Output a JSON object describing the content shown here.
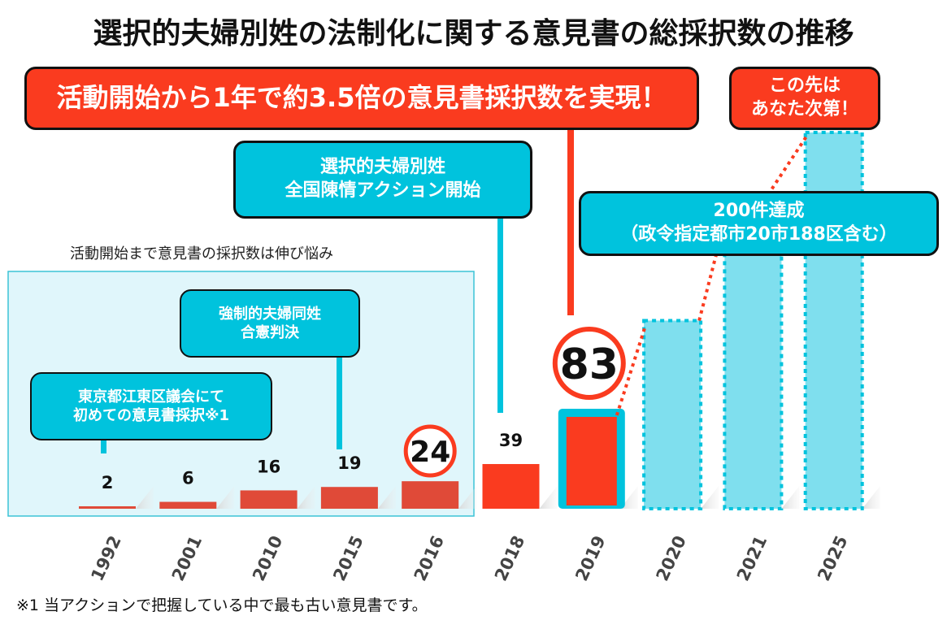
{
  "title": "選択的夫婦別姓の法制化に関する意見書の総採択数の推移",
  "callouts": {
    "headline": "活動開始から1年で約3.5倍の意見書採択数を実現！",
    "future_line1": "この先は",
    "future_line2": "あなた次第！",
    "action_start_line1": "選択的夫婦別姓",
    "action_start_line2": "全国陳情アクション開始",
    "milestone_line1": "200件達成",
    "milestone_line2": "（政令指定都市20市188区含む）",
    "ruling_line1": "強制的夫婦同姓",
    "ruling_line2": "合憲判決",
    "first_line1": "東京都江東区議会にて",
    "first_line2": "初めての意見書採択※1"
  },
  "stagnation_label": "活動開始まで意見書の採択数は伸び悩み",
  "footnote": "※1 当アクションで把握している中で最も古い意見書です。",
  "colors": {
    "red": "#fa3b1f",
    "muted_red": "#e04a38",
    "cyan": "#00c3dd",
    "light_cyan": "#7fdfee",
    "panel_bg": "#e0f6fb",
    "panel_border": "#3cc3d6"
  },
  "chart_data": {
    "type": "bar",
    "title": "選択的夫婦別姓の法制化に関する意見書の総採択数の推移",
    "xlabel": "",
    "ylabel": "",
    "categories": [
      "1992",
      "2001",
      "2010",
      "2015",
      "2016",
      "2018",
      "2019",
      "2020",
      "2021",
      "2025"
    ],
    "values": [
      2,
      6,
      16,
      19,
      24,
      39,
      83,
      null,
      null,
      null
    ],
    "labels": [
      "2",
      "6",
      "16",
      "19",
      "24",
      "39",
      "83",
      "",
      "",
      ""
    ],
    "projected": [
      false,
      false,
      false,
      false,
      false,
      false,
      false,
      true,
      true,
      true
    ],
    "projected_relative_heights": [
      null,
      null,
      null,
      null,
      null,
      null,
      null,
      0.5,
      0.8,
      1.0
    ],
    "highlighted": [
      "2016",
      "2019"
    ],
    "trend_line": "dotted red line from 2019 rising through 2020, 2021 to 2025",
    "grid": false,
    "legend": "none"
  }
}
